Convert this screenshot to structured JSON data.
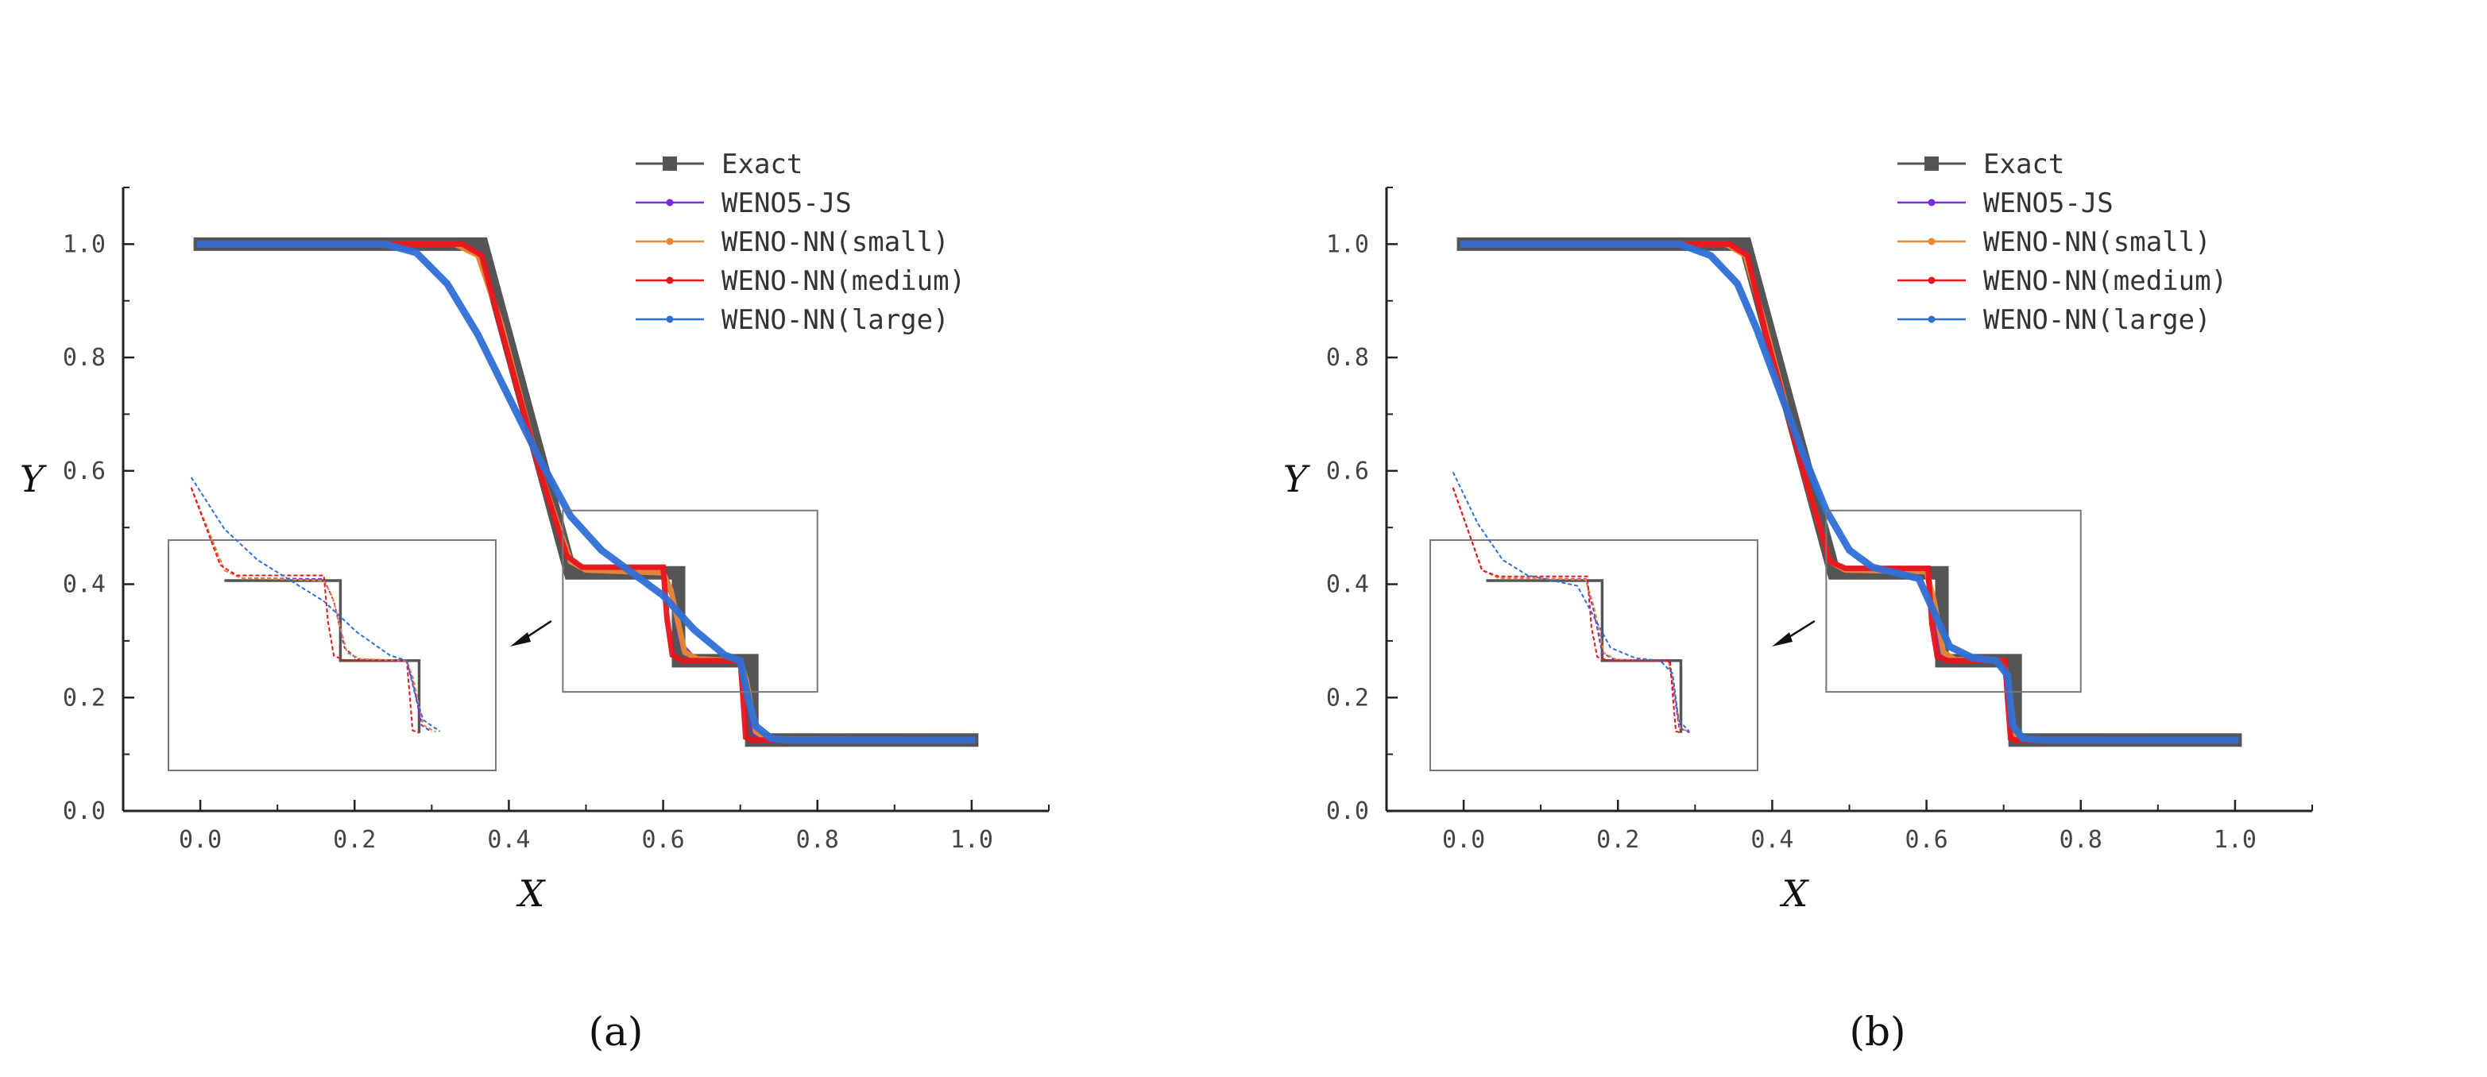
{
  "chart_data": [
    {
      "type": "line",
      "panel_label": "(a)",
      "xlabel": "X",
      "ylabel": "Y",
      "xlim": [
        -0.1,
        1.1
      ],
      "ylim": [
        0.0,
        1.1
      ],
      "xticks": [
        0.0,
        0.2,
        0.4,
        0.6,
        0.8,
        1.0
      ],
      "xtick_labels": [
        "0.0",
        "0.2",
        "0.4",
        "0.6",
        "0.8",
        "1.0"
      ],
      "yticks": [
        0.0,
        0.2,
        0.4,
        0.6,
        0.8,
        1.0
      ],
      "ytick_labels": [
        "0.0",
        "0.2",
        "0.4",
        "0.6",
        "0.8",
        "1.0"
      ],
      "legend_position": "top-right",
      "zoom_region": {
        "x": [
          0.47,
          0.8
        ],
        "y": [
          0.21,
          0.53
        ]
      },
      "series": [
        {
          "name": "Exact",
          "color": "#555555",
          "marker": "square",
          "points": [
            [
              0,
              1.0
            ],
            [
              0.365,
              1.0
            ],
            [
              0.48,
              0.42
            ],
            [
              0.62,
              0.42
            ],
            [
              0.62,
              0.265
            ],
            [
              0.715,
              0.265
            ],
            [
              0.715,
              0.125
            ],
            [
              1.0,
              0.125
            ]
          ]
        },
        {
          "name": "WENO5-JS",
          "color": "#7a2be0",
          "marker": "dot",
          "points": [
            [
              0,
              1.0
            ],
            [
              0.33,
              1.0
            ],
            [
              0.36,
              0.985
            ],
            [
              0.39,
              0.86
            ],
            [
              0.44,
              0.6
            ],
            [
              0.48,
              0.44
            ],
            [
              0.5,
              0.425
            ],
            [
              0.6,
              0.423
            ],
            [
              0.612,
              0.38
            ],
            [
              0.625,
              0.29
            ],
            [
              0.64,
              0.268
            ],
            [
              0.7,
              0.265
            ],
            [
              0.708,
              0.22
            ],
            [
              0.718,
              0.14
            ],
            [
              0.73,
              0.127
            ],
            [
              1.0,
              0.125
            ]
          ]
        },
        {
          "name": "WENO-NN(small)",
          "color": "#e8892f",
          "marker": "dot",
          "points": [
            [
              0,
              1.0
            ],
            [
              0.33,
              1.0
            ],
            [
              0.36,
              0.98
            ],
            [
              0.39,
              0.86
            ],
            [
              0.44,
              0.6
            ],
            [
              0.48,
              0.44
            ],
            [
              0.5,
              0.425
            ],
            [
              0.6,
              0.42
            ],
            [
              0.61,
              0.39
            ],
            [
              0.628,
              0.28
            ],
            [
              0.645,
              0.268
            ],
            [
              0.7,
              0.265
            ],
            [
              0.708,
              0.23
            ],
            [
              0.72,
              0.14
            ],
            [
              0.735,
              0.127
            ],
            [
              1.0,
              0.125
            ]
          ]
        },
        {
          "name": "WENO-NN(medium)",
          "color": "#e8141e",
          "marker": "dot",
          "points": [
            [
              0,
              1.0
            ],
            [
              0.34,
              1.0
            ],
            [
              0.365,
              0.98
            ],
            [
              0.39,
              0.85
            ],
            [
              0.44,
              0.6
            ],
            [
              0.475,
              0.45
            ],
            [
              0.495,
              0.43
            ],
            [
              0.6,
              0.43
            ],
            [
              0.605,
              0.34
            ],
            [
              0.612,
              0.275
            ],
            [
              0.625,
              0.265
            ],
            [
              0.7,
              0.265
            ],
            [
              0.703,
              0.21
            ],
            [
              0.707,
              0.13
            ],
            [
              0.715,
              0.125
            ],
            [
              1.0,
              0.125
            ]
          ]
        },
        {
          "name": "WENO-NN(large)",
          "color": "#2e6fd6",
          "marker": "dot",
          "points": [
            [
              0,
              1.0
            ],
            [
              0.24,
              1.0
            ],
            [
              0.28,
              0.985
            ],
            [
              0.32,
              0.93
            ],
            [
              0.36,
              0.84
            ],
            [
              0.4,
              0.73
            ],
            [
              0.44,
              0.62
            ],
            [
              0.48,
              0.52
            ],
            [
              0.52,
              0.46
            ],
            [
              0.56,
              0.42
            ],
            [
              0.6,
              0.38
            ],
            [
              0.64,
              0.32
            ],
            [
              0.68,
              0.275
            ],
            [
              0.7,
              0.265
            ],
            [
              0.71,
              0.2
            ],
            [
              0.72,
              0.15
            ],
            [
              0.74,
              0.128
            ],
            [
              0.76,
              0.125
            ],
            [
              1.0,
              0.125
            ]
          ]
        }
      ]
    },
    {
      "type": "line",
      "panel_label": "(b)",
      "xlabel": "X",
      "ylabel": "Y",
      "xlim": [
        -0.1,
        1.1
      ],
      "ylim": [
        0.0,
        1.1
      ],
      "xticks": [
        0.0,
        0.2,
        0.4,
        0.6,
        0.8,
        1.0
      ],
      "xtick_labels": [
        "0.0",
        "0.2",
        "0.4",
        "0.6",
        "0.8",
        "1.0"
      ],
      "yticks": [
        0.0,
        0.2,
        0.4,
        0.6,
        0.8,
        1.0
      ],
      "ytick_labels": [
        "0.0",
        "0.2",
        "0.4",
        "0.6",
        "0.8",
        "1.0"
      ],
      "legend_position": "top-right",
      "zoom_region": {
        "x": [
          0.47,
          0.8
        ],
        "y": [
          0.21,
          0.53
        ]
      },
      "series": [
        {
          "name": "Exact",
          "color": "#555555",
          "marker": "square",
          "points": [
            [
              0,
              1.0
            ],
            [
              0.365,
              1.0
            ],
            [
              0.48,
              0.42
            ],
            [
              0.62,
              0.42
            ],
            [
              0.62,
              0.265
            ],
            [
              0.715,
              0.265
            ],
            [
              0.715,
              0.125
            ],
            [
              1.0,
              0.125
            ]
          ]
        },
        {
          "name": "WENO5-JS",
          "color": "#7a2be0",
          "marker": "dot",
          "points": [
            [
              0,
              1.0
            ],
            [
              0.34,
              1.0
            ],
            [
              0.365,
              0.985
            ],
            [
              0.39,
              0.86
            ],
            [
              0.44,
              0.6
            ],
            [
              0.475,
              0.44
            ],
            [
              0.495,
              0.425
            ],
            [
              0.6,
              0.423
            ],
            [
              0.61,
              0.36
            ],
            [
              0.62,
              0.28
            ],
            [
              0.635,
              0.267
            ],
            [
              0.7,
              0.265
            ],
            [
              0.707,
              0.2
            ],
            [
              0.713,
              0.135
            ],
            [
              0.725,
              0.126
            ],
            [
              1.0,
              0.125
            ]
          ]
        },
        {
          "name": "WENO-NN(small)",
          "color": "#e8892f",
          "marker": "dot",
          "points": [
            [
              0,
              1.0
            ],
            [
              0.34,
              1.0
            ],
            [
              0.365,
              0.98
            ],
            [
              0.39,
              0.86
            ],
            [
              0.44,
              0.6
            ],
            [
              0.475,
              0.44
            ],
            [
              0.495,
              0.425
            ],
            [
              0.6,
              0.422
            ],
            [
              0.61,
              0.37
            ],
            [
              0.622,
              0.28
            ],
            [
              0.637,
              0.267
            ],
            [
              0.7,
              0.265
            ],
            [
              0.707,
              0.21
            ],
            [
              0.714,
              0.135
            ],
            [
              0.726,
              0.126
            ],
            [
              1.0,
              0.125
            ]
          ]
        },
        {
          "name": "WENO-NN(medium)",
          "color": "#e8141e",
          "marker": "dot",
          "points": [
            [
              0,
              1.0
            ],
            [
              0.345,
              1.0
            ],
            [
              0.368,
              0.98
            ],
            [
              0.39,
              0.85
            ],
            [
              0.44,
              0.6
            ],
            [
              0.475,
              0.44
            ],
            [
              0.495,
              0.428
            ],
            [
              0.602,
              0.428
            ],
            [
              0.607,
              0.33
            ],
            [
              0.614,
              0.272
            ],
            [
              0.628,
              0.265
            ],
            [
              0.702,
              0.265
            ],
            [
              0.705,
              0.2
            ],
            [
              0.709,
              0.128
            ],
            [
              0.716,
              0.125
            ],
            [
              1.0,
              0.125
            ]
          ]
        },
        {
          "name": "WENO-NN(large)",
          "color": "#2e6fd6",
          "marker": "dot",
          "points": [
            [
              0,
              1.0
            ],
            [
              0.28,
              1.0
            ],
            [
              0.32,
              0.98
            ],
            [
              0.355,
              0.93
            ],
            [
              0.38,
              0.85
            ],
            [
              0.41,
              0.74
            ],
            [
              0.44,
              0.63
            ],
            [
              0.47,
              0.53
            ],
            [
              0.5,
              0.46
            ],
            [
              0.53,
              0.43
            ],
            [
              0.56,
              0.42
            ],
            [
              0.59,
              0.41
            ],
            [
              0.61,
              0.35
            ],
            [
              0.63,
              0.29
            ],
            [
              0.66,
              0.27
            ],
            [
              0.69,
              0.265
            ],
            [
              0.705,
              0.24
            ],
            [
              0.712,
              0.15
            ],
            [
              0.725,
              0.128
            ],
            [
              0.75,
              0.125
            ],
            [
              1.0,
              0.125
            ]
          ]
        }
      ]
    }
  ]
}
